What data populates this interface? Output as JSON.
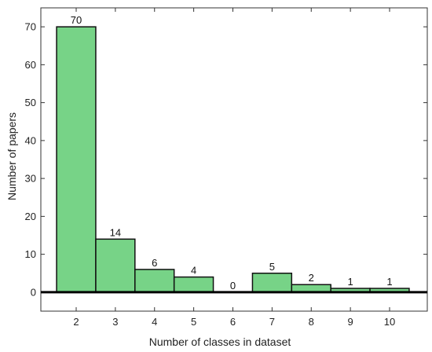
{
  "chart_data": {
    "type": "bar",
    "title": "",
    "xlabel": "Number of classes in dataset",
    "ylabel": "Number of papers",
    "categories": [
      "2",
      "3",
      "4",
      "5",
      "6",
      "7",
      "8",
      "9",
      "10"
    ],
    "values": [
      70,
      14,
      6,
      4,
      0,
      5,
      2,
      1,
      1
    ],
    "data_labels": [
      "70",
      "14",
      "6",
      "4",
      "0",
      "5",
      "2",
      "1",
      "1"
    ],
    "ylim": [
      -5,
      75
    ],
    "yticks": [
      0,
      10,
      20,
      30,
      40,
      50,
      60,
      70
    ],
    "ytick_labels": [
      "0",
      "10",
      "20",
      "30",
      "40",
      "50",
      "60",
      "70"
    ],
    "grid": false,
    "legend": "none",
    "colors": {
      "bar_fill": "#77d387",
      "bar_edge": "#111111",
      "zero_line": "#000000",
      "axes": "#333333"
    }
  }
}
